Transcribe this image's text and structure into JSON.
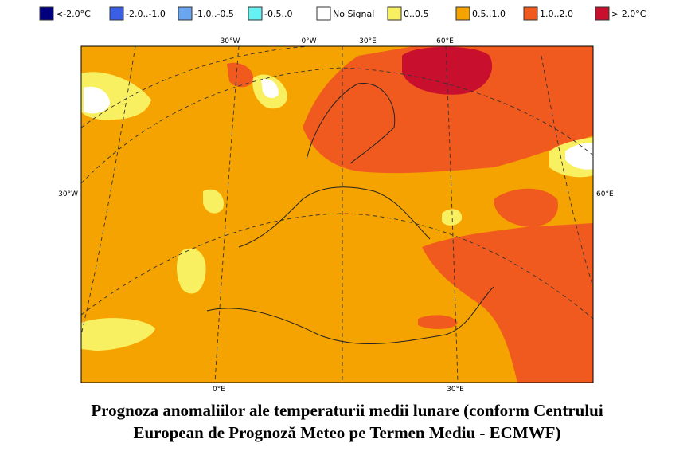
{
  "legend": [
    {
      "label": "<-2.0°C",
      "color": "#00007f"
    },
    {
      "label": "-2.0..-1.0",
      "color": "#3a5fe5"
    },
    {
      "label": "-1.0..-0.5",
      "color": "#6aa6f0"
    },
    {
      "label": "-0.5..0",
      "color": "#66f2f2"
    },
    {
      "label": "No Signal",
      "color": "#ffffff"
    },
    {
      "label": "0..0.5",
      "color": "#f8f060"
    },
    {
      "label": "0.5..1.0",
      "color": "#f5a300"
    },
    {
      "label": "1.0..2.0",
      "color": "#f05a1e"
    },
    {
      "label": "> 2.0°C",
      "color": "#c8102e"
    }
  ],
  "map": {
    "top_labels": [
      "30°W",
      "0°W",
      "30°E",
      "60°E"
    ],
    "left_label": "30°W",
    "right_label": "60°E",
    "bottom_labels": [
      "0°E",
      "30°E"
    ]
  },
  "caption": [
    "Prognoza anomaliilor ale temperaturii medii lunare (conform Centrului",
    "European de Prognoză Meteo pe Termen Mediu - ECMWF)"
  ]
}
